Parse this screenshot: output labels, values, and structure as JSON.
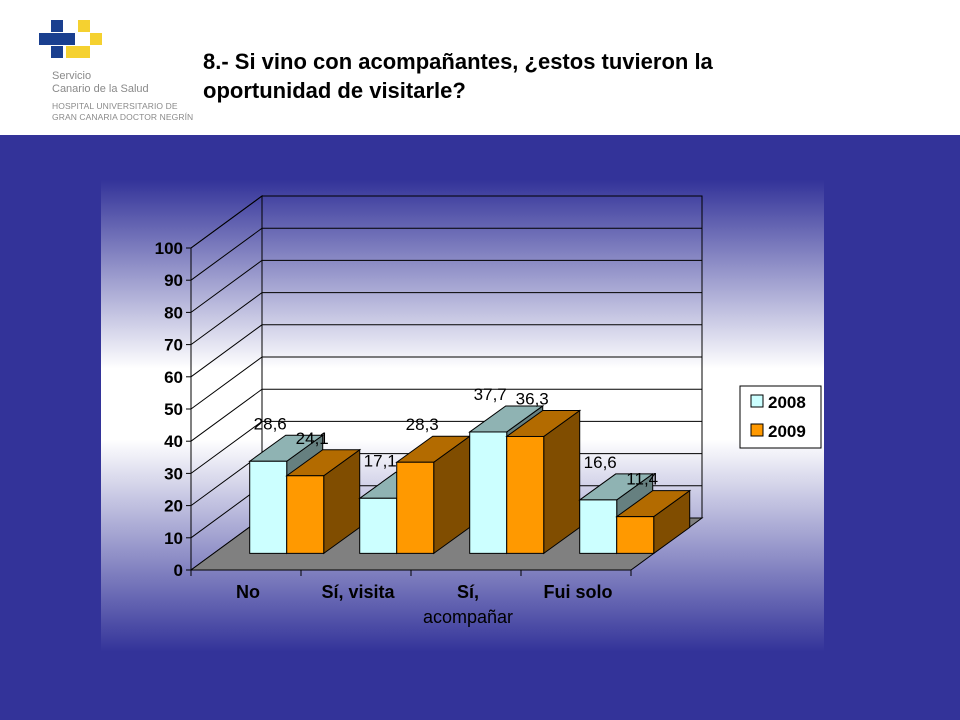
{
  "header": {
    "logo": {
      "line1": "Servicio",
      "line2": "Canario de la Salud",
      "line3": "HOSPITAL UNIVERSITARIO DE",
      "line4": "GRAN CANARIA DOCTOR NEGRÍN",
      "colors": {
        "blue": "#1a3f8f",
        "yellow": "#f5d130"
      }
    },
    "title_line1": "8.- Si vino con acompañantes, ¿estos tuvieron la",
    "title_line2": "oportunidad de visitarle?"
  },
  "colors": {
    "background": "#333399",
    "series_2008": "#ccffff",
    "series_2009": "#ff9900"
  },
  "chart_data": {
    "type": "bar",
    "style": "3d-clustered-column",
    "categories": [
      "No",
      "Sí, visita",
      "Sí, acompañar",
      "Fui solo"
    ],
    "category_label_lines": [
      [
        "No"
      ],
      [
        "Sí, visita"
      ],
      [
        "Sí,",
        "acompañar"
      ],
      [
        "Fui solo"
      ]
    ],
    "series": [
      {
        "name": "2008",
        "values": [
          28.6,
          17.1,
          37.7,
          16.6
        ],
        "labels": [
          "28,6",
          "17,1",
          "37,7",
          "16,6"
        ],
        "color": "#ccffff"
      },
      {
        "name": "2009",
        "values": [
          24.1,
          28.3,
          36.3,
          11.4
        ],
        "labels": [
          "24,1",
          "28,3",
          "36,3",
          "11,4"
        ],
        "color": "#ff9900"
      }
    ],
    "ylim": [
      0,
      100
    ],
    "yticks": [
      "0",
      "10",
      "20",
      "30",
      "40",
      "50",
      "60",
      "70",
      "80",
      "90",
      "100"
    ],
    "grid": true,
    "legend": {
      "position": "right",
      "entries": [
        "2008",
        "2009"
      ]
    }
  }
}
